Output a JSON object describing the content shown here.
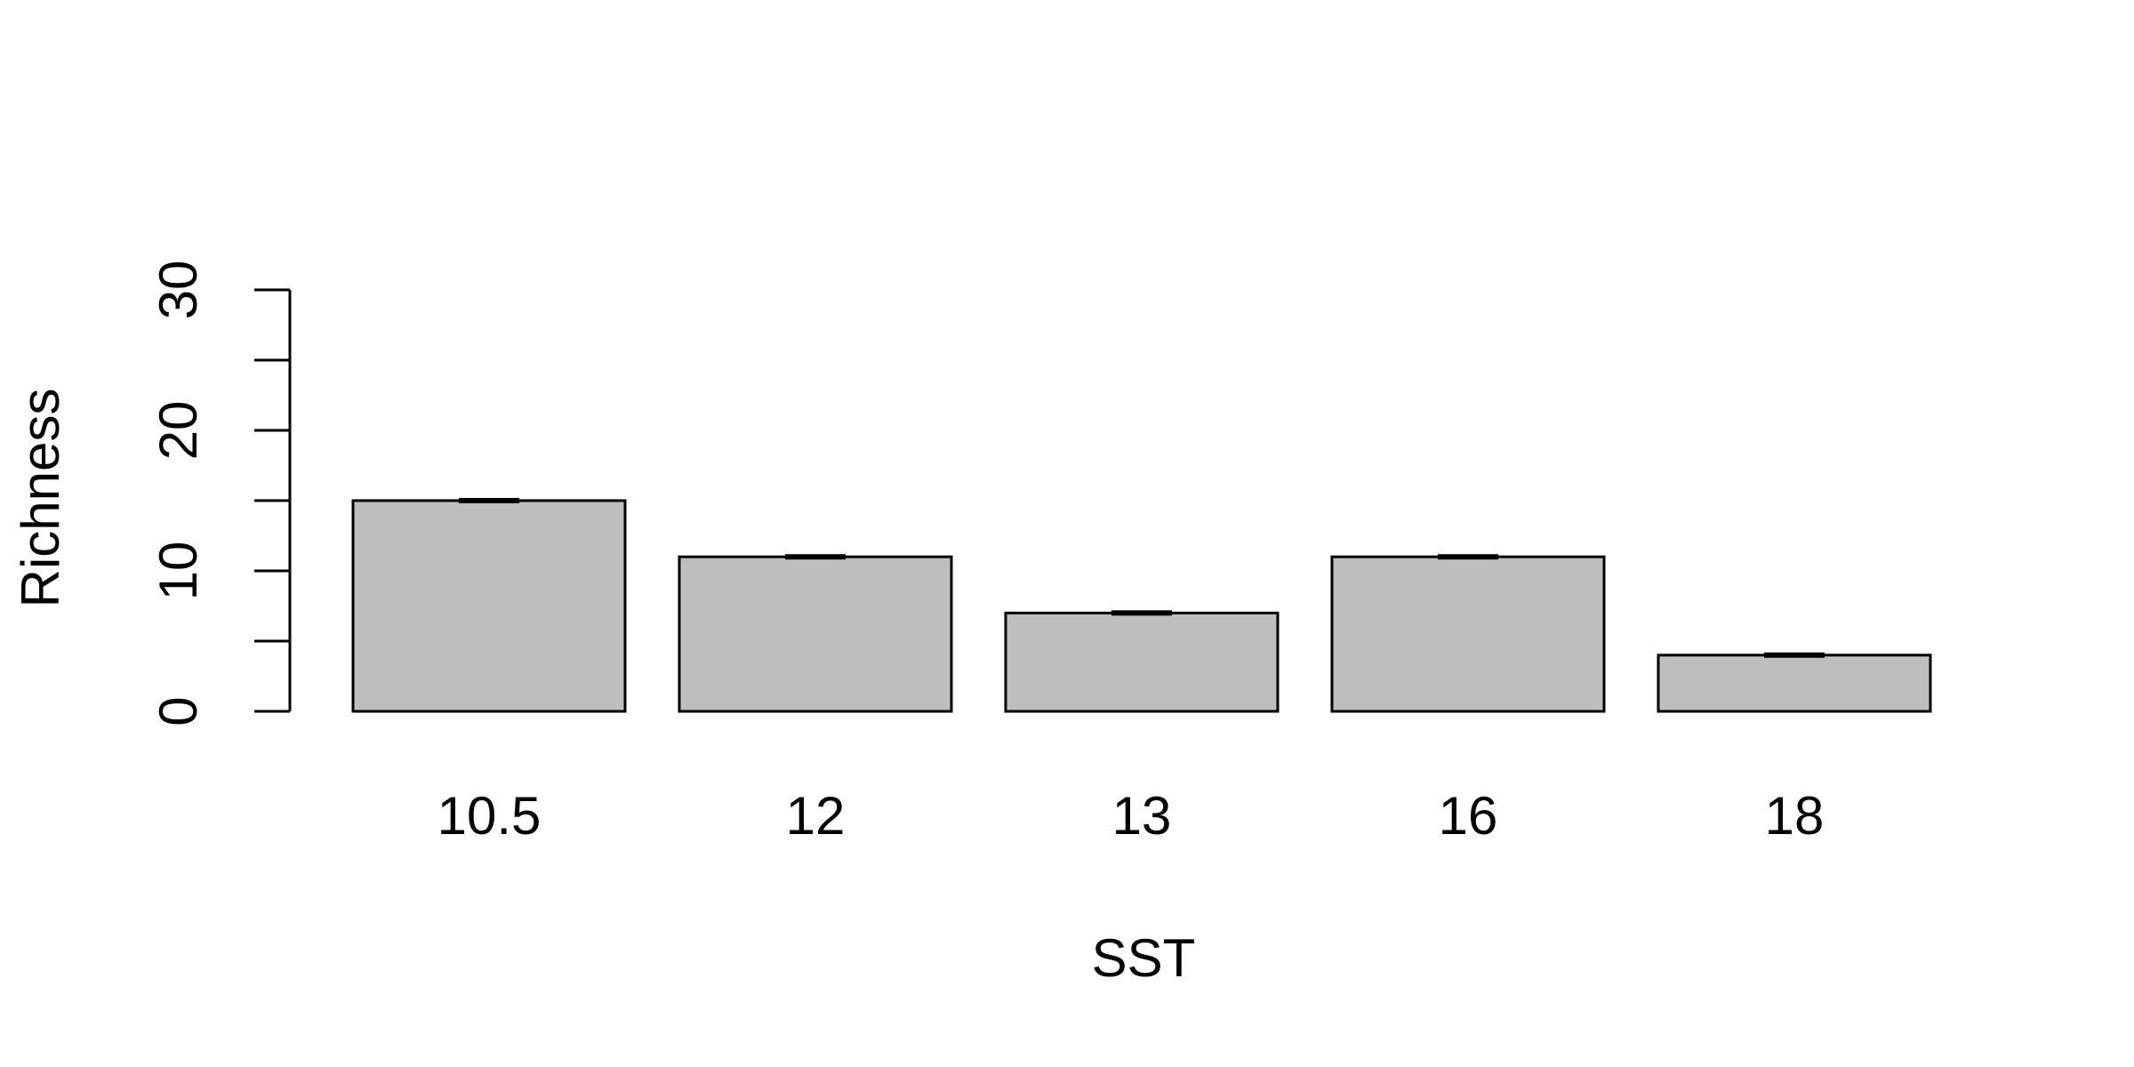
{
  "chart_data": {
    "type": "bar",
    "categories": [
      "10.5",
      "12",
      "13",
      "16",
      "18"
    ],
    "values": [
      15,
      11,
      7,
      11,
      4
    ],
    "error_bars": [
      0,
      0,
      0,
      0,
      0
    ],
    "xlabel": "SST",
    "ylabel": "Richness",
    "ylim": [
      0,
      30
    ],
    "yticks": [
      0,
      5,
      10,
      15,
      20,
      25,
      30
    ],
    "ytick_labels": [
      "0",
      "",
      "10",
      "",
      "20",
      "",
      "30"
    ],
    "grid": false,
    "legend": "none",
    "colors": {
      "bar_fill": "#bebebe",
      "bar_stroke": "#000000",
      "axis": "#000000",
      "background": "#ffffff"
    }
  }
}
